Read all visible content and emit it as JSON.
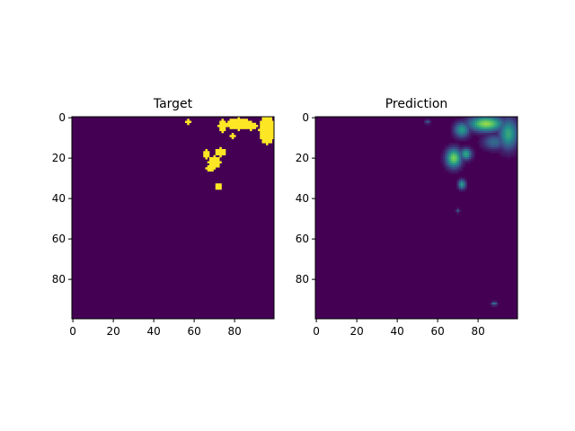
{
  "chart_data": [
    {
      "type": "heatmap",
      "title": "Target",
      "xlim": [
        0,
        99
      ],
      "ylim": [
        99,
        0
      ],
      "xticks": [
        0,
        20,
        40,
        60,
        80
      ],
      "yticks": [
        0,
        20,
        40,
        60,
        80
      ],
      "grid": false,
      "colormap": "viridis",
      "value_range": [
        0,
        1
      ],
      "blobs": [
        {
          "cx": 82,
          "cy": 3,
          "rx": 6,
          "ry": 3,
          "value": 1
        },
        {
          "cx": 96,
          "cy": 6,
          "rx": 4,
          "ry": 7,
          "value": 1
        },
        {
          "cx": 74,
          "cy": 4,
          "rx": 2,
          "ry": 3,
          "value": 1
        },
        {
          "cx": 88,
          "cy": 4,
          "rx": 3,
          "ry": 2,
          "value": 1
        },
        {
          "cx": 70,
          "cy": 22,
          "rx": 3,
          "ry": 3,
          "value": 1
        },
        {
          "cx": 66,
          "cy": 18,
          "rx": 1.5,
          "ry": 2,
          "value": 1
        },
        {
          "cx": 73,
          "cy": 17,
          "rx": 2.5,
          "ry": 2,
          "value": 1
        },
        {
          "cx": 68,
          "cy": 25,
          "rx": 2,
          "ry": 1.5,
          "value": 1
        },
        {
          "cx": 72,
          "cy": 34,
          "rx": 1.5,
          "ry": 1.5,
          "value": 1
        },
        {
          "cx": 57,
          "cy": 2,
          "rx": 1,
          "ry": 1,
          "value": 1
        },
        {
          "cx": 79,
          "cy": 9,
          "rx": 1.5,
          "ry": 1,
          "value": 1
        }
      ]
    },
    {
      "type": "heatmap",
      "title": "Prediction",
      "xlim": [
        0,
        99
      ],
      "ylim": [
        99,
        0
      ],
      "xticks": [
        0,
        20,
        40,
        60,
        80
      ],
      "yticks": [
        0,
        20,
        40,
        60,
        80
      ],
      "grid": false,
      "colormap": "viridis",
      "value_range": [
        0,
        1
      ],
      "blobs": [
        {
          "cx": 84,
          "cy": 3,
          "rx": 9,
          "ry": 4,
          "value": 0.85
        },
        {
          "cx": 95,
          "cy": 8,
          "rx": 5,
          "ry": 8,
          "value": 0.6
        },
        {
          "cx": 72,
          "cy": 6,
          "rx": 4,
          "ry": 4,
          "value": 0.55
        },
        {
          "cx": 68,
          "cy": 20,
          "rx": 4,
          "ry": 5,
          "value": 0.8
        },
        {
          "cx": 74,
          "cy": 18,
          "rx": 3,
          "ry": 3,
          "value": 0.6
        },
        {
          "cx": 72,
          "cy": 33,
          "rx": 2,
          "ry": 2.5,
          "value": 0.55
        },
        {
          "cx": 88,
          "cy": 12,
          "rx": 6,
          "ry": 4,
          "value": 0.35
        },
        {
          "cx": 55,
          "cy": 2,
          "rx": 1.5,
          "ry": 1,
          "value": 0.3
        },
        {
          "cx": 70,
          "cy": 46,
          "rx": 1,
          "ry": 1,
          "value": 0.3
        },
        {
          "cx": 88,
          "cy": 92,
          "rx": 1.5,
          "ry": 1,
          "value": 0.4
        }
      ]
    }
  ]
}
